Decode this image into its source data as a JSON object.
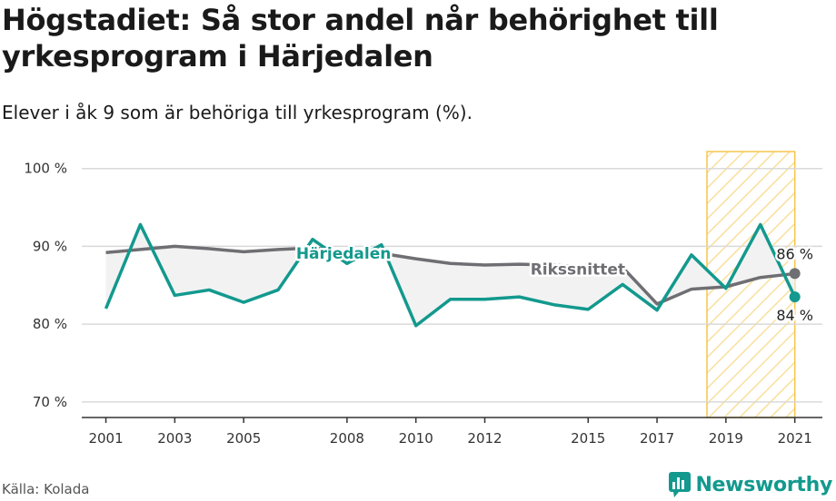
{
  "title": "Högstadiet: Så stor andel når behörighet till yrkesprogram i Härjedalen",
  "subtitle": "Elever i åk 9 som är behöriga till yrkesprogram (%).",
  "source": "Källa: Kolada",
  "brand": "Newsworthy",
  "colors": {
    "harjedalen": "#13998e",
    "riket": "#6e6e73",
    "highlight": "#f6c54b",
    "fill": "#f2f2f2",
    "grid": "#d9d9d9"
  },
  "chart_data": {
    "type": "line",
    "ylim": [
      68,
      103
    ],
    "yticks": [
      70,
      80,
      90,
      100
    ],
    "ytick_labels": [
      "70 %",
      "80 %",
      "90 %",
      "100 %"
    ],
    "xlim": [
      2000.3,
      2021.8
    ],
    "xticks": [
      2001,
      2003,
      2005,
      2008,
      2010,
      2012,
      2015,
      2017,
      2019,
      2021
    ],
    "xtick_labels": [
      "2001",
      "2003",
      "2005",
      "2008",
      "2010",
      "2012",
      "2015",
      "2017",
      "2019",
      "2021"
    ],
    "highlight_range": [
      2019,
      2021
    ],
    "series": [
      {
        "name": "Härjedalen",
        "color": "#13998e",
        "x": [
          2001,
          2002,
          2003,
          2004,
          2005,
          2006,
          2007,
          2008,
          2009,
          2010,
          2011,
          2012,
          2013,
          2014,
          2015,
          2016,
          2017,
          2018,
          2019,
          2020,
          2021
        ],
        "y": [
          82,
          92.8,
          83.7,
          84.4,
          82.8,
          84.4,
          90.9,
          87.8,
          90.2,
          79.8,
          83.2,
          83.2,
          83.5,
          82.5,
          81.9,
          85.1,
          81.8,
          88.9,
          84.6,
          92.8,
          83.5
        ],
        "end_label": "84 %"
      },
      {
        "name": "Rikssnittet",
        "color": "#6e6e73",
        "x": [
          2001,
          2002,
          2003,
          2004,
          2005,
          2006,
          2007,
          2008,
          2009,
          2010,
          2011,
          2012,
          2013,
          2014,
          2015,
          2016,
          2017,
          2018,
          2019,
          2020,
          2021
        ],
        "y": [
          89.2,
          89.6,
          90,
          89.7,
          89.3,
          89.6,
          89.8,
          89.3,
          89.1,
          88.4,
          87.8,
          87.6,
          87.7,
          87.6,
          87.3,
          87.3,
          82.6,
          84.5,
          84.8,
          86,
          86.5
        ],
        "end_label": "86 %"
      }
    ]
  }
}
